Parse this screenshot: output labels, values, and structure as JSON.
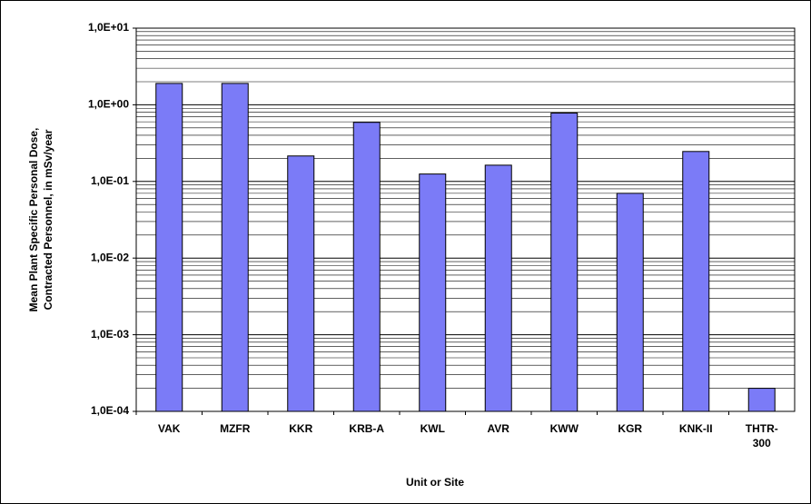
{
  "chart_data": {
    "type": "bar",
    "xlabel": "Unit or Site",
    "ylabel": [
      "Mean Plant Specific Personal Dose,",
      "Contracted Personnel, in mSv/year"
    ],
    "categories": [
      "VAK",
      "MZFR",
      "KKR",
      "KRB-A",
      "KWL",
      "AVR",
      "KWW",
      "KGR",
      "KNK-II",
      "THTR-\n300"
    ],
    "values": [
      1.9,
      1.9,
      0.215,
      0.59,
      0.125,
      0.163,
      0.78,
      0.07,
      0.246,
      0.0002
    ],
    "color": "#7b7bf7",
    "log_scale": true,
    "grid": true,
    "ylim": [
      0.0001,
      10
    ],
    "yticks": [
      {
        "value": 0.0001,
        "label": "1,0E-04"
      },
      {
        "value": 0.001,
        "label": "1,0E-03"
      },
      {
        "value": 0.01,
        "label": "1,0E-02"
      },
      {
        "value": 0.1,
        "label": "1,0E-01"
      },
      {
        "value": 1,
        "label": "1,0E+00"
      },
      {
        "value": 10,
        "label": "1,0E+01"
      }
    ]
  }
}
